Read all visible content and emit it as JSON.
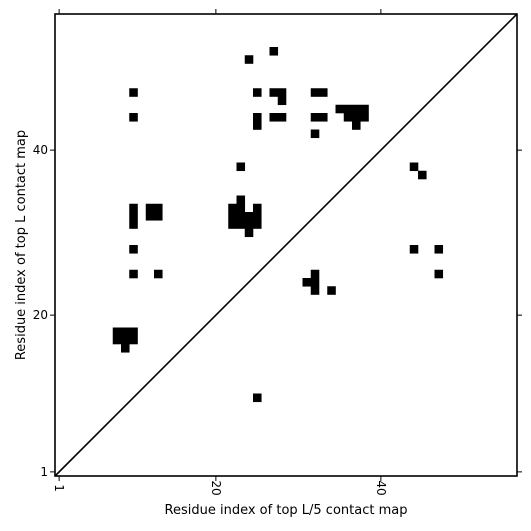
{
  "chart_data": {
    "type": "heatmap",
    "title": "",
    "xlabel": "Residue index of top L/5 contact map",
    "ylabel": "Residue index of top L contact map",
    "xlim": [
      0.5,
      56.5
    ],
    "ylim": [
      0.5,
      56.5
    ],
    "x_ticks": [
      1,
      20,
      40
    ],
    "y_ticks": [
      1,
      20,
      40
    ],
    "x_tick_labels": [
      "1",
      "20",
      "40"
    ],
    "y_tick_labels": [
      "1",
      "20",
      "40"
    ],
    "diagonal": true,
    "cell_color": "#000000",
    "contacts": [
      [
        10,
        47
      ],
      [
        10,
        44
      ],
      [
        10,
        33
      ],
      [
        10,
        32
      ],
      [
        10,
        31
      ],
      [
        10,
        28
      ],
      [
        10,
        25
      ],
      [
        12,
        33
      ],
      [
        12,
        32
      ],
      [
        13,
        33
      ],
      [
        13,
        32
      ],
      [
        13,
        25
      ],
      [
        8,
        18
      ],
      [
        8,
        17
      ],
      [
        9,
        18
      ],
      [
        9,
        17
      ],
      [
        9,
        16
      ],
      [
        10,
        18
      ],
      [
        10,
        17
      ],
      [
        22,
        33
      ],
      [
        22,
        32
      ],
      [
        22,
        31
      ],
      [
        23,
        34
      ],
      [
        23,
        33
      ],
      [
        23,
        32
      ],
      [
        23,
        31
      ],
      [
        23,
        38
      ],
      [
        24,
        32
      ],
      [
        24,
        31
      ],
      [
        24,
        30
      ],
      [
        24,
        51
      ],
      [
        25,
        33
      ],
      [
        25,
        32
      ],
      [
        25,
        31
      ],
      [
        25,
        47
      ],
      [
        25,
        44
      ],
      [
        25,
        43
      ],
      [
        25,
        10
      ],
      [
        27,
        52
      ],
      [
        27,
        47
      ],
      [
        27,
        44
      ],
      [
        28,
        47
      ],
      [
        28,
        46
      ],
      [
        28,
        44
      ],
      [
        31,
        24
      ],
      [
        32,
        47
      ],
      [
        32,
        44
      ],
      [
        32,
        42
      ],
      [
        32,
        25
      ],
      [
        32,
        24
      ],
      [
        32,
        23
      ],
      [
        33,
        47
      ],
      [
        33,
        44
      ],
      [
        34,
        23
      ],
      [
        35,
        45
      ],
      [
        36,
        45
      ],
      [
        36,
        44
      ],
      [
        37,
        45
      ],
      [
        37,
        44
      ],
      [
        37,
        43
      ],
      [
        38,
        45
      ],
      [
        38,
        44
      ],
      [
        44,
        38
      ],
      [
        44,
        28
      ],
      [
        45,
        37
      ],
      [
        47,
        28
      ],
      [
        47,
        25
      ]
    ]
  }
}
